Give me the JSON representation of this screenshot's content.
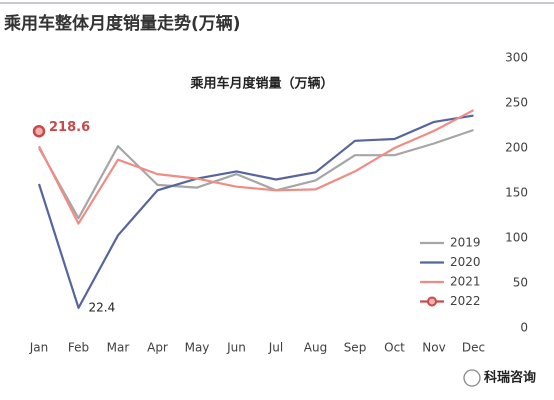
{
  "chart_data": {
    "type": "line",
    "page_title": "乘用车整体月度销量走势(万辆)",
    "title": "乘用车月度销量（万辆）",
    "brand": "科瑞咨询",
    "categories": [
      "Jan",
      "Feb",
      "Mar",
      "Apr",
      "May",
      "Jun",
      "Jul",
      "Aug",
      "Sep",
      "Oct",
      "Nov",
      "Dec"
    ],
    "series": [
      {
        "name": "2019",
        "color": "#a6a6a6",
        "values": [
          200,
          122,
          202,
          159,
          156,
          171,
          153,
          164,
          192,
          192,
          205,
          220
        ]
      },
      {
        "name": "2020",
        "color": "#56659b",
        "values": [
          160,
          22.4,
          103,
          153,
          166,
          174,
          165,
          173,
          208,
          210,
          229,
          236
        ],
        "labeled": [
          1
        ]
      },
      {
        "name": "2021",
        "color": "#f08c84",
        "values": [
          202,
          116,
          187,
          171,
          166,
          157,
          153,
          154,
          174,
          200,
          219,
          242
        ]
      },
      {
        "name": "2022",
        "color": "#c9484a",
        "values": [
          218.6,
          null,
          null,
          null,
          null,
          null,
          null,
          null,
          null,
          null,
          null,
          null
        ],
        "marker": true,
        "labeled": [
          0
        ]
      }
    ],
    "ylim": [
      0,
      300
    ],
    "yticks": [
      0,
      50,
      100,
      150,
      200,
      250,
      300
    ],
    "y_axis_side": "right",
    "grid": false,
    "legend": "lower right"
  }
}
